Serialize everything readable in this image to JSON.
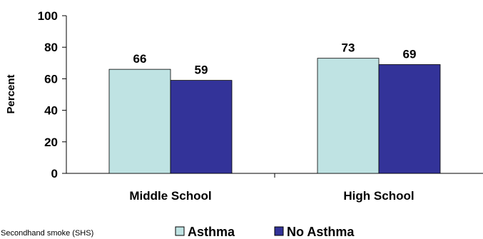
{
  "chart_data": {
    "type": "bar",
    "categories": [
      "Middle School",
      "High School"
    ],
    "series": [
      {
        "name": "Asthma",
        "values": [
          66,
          73
        ],
        "color": "#bfe3e3"
      },
      {
        "name": "No Asthma",
        "values": [
          59,
          69
        ],
        "color": "#333399"
      }
    ],
    "ylabel": "Percent",
    "ylim": [
      0,
      100
    ],
    "yticks": [
      0,
      20,
      40,
      60,
      80,
      100
    ],
    "legend_position": "bottom",
    "grid": false
  },
  "footnote": "Secondhand smoke (SHS)"
}
